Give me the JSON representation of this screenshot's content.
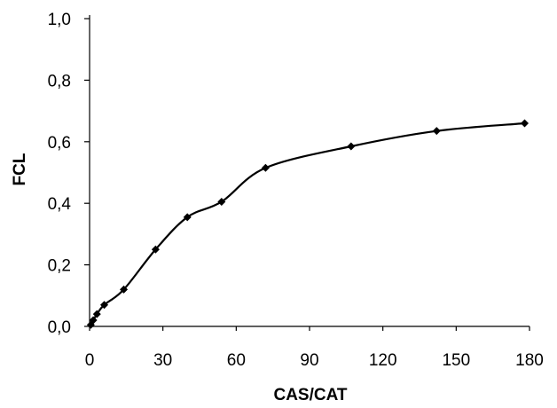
{
  "chart_data": {
    "type": "line",
    "title": "",
    "xlabel": "CAS/CAT",
    "ylabel": "FCL",
    "xlim": [
      0,
      180
    ],
    "ylim": [
      0,
      1.0
    ],
    "x_ticks": [
      "0",
      "30",
      "60",
      "90",
      "120",
      "150",
      "180"
    ],
    "y_ticks": [
      "0,0",
      "0,2",
      "0,4",
      "0,6",
      "0,8",
      "1,0"
    ],
    "grid": false,
    "legend": "none",
    "series": [
      {
        "marker": "diamond",
        "color": "#000000",
        "smooth": true,
        "points": [
          {
            "x": 0.5,
            "y": 0.005
          },
          {
            "x": 1.5,
            "y": 0.02
          },
          {
            "x": 3,
            "y": 0.04
          },
          {
            "x": 6,
            "y": 0.07
          },
          {
            "x": 14,
            "y": 0.12
          },
          {
            "x": 27,
            "y": 0.25
          },
          {
            "x": 40,
            "y": 0.355
          },
          {
            "x": 54,
            "y": 0.405
          },
          {
            "x": 72,
            "y": 0.515
          },
          {
            "x": 107,
            "y": 0.585
          },
          {
            "x": 142,
            "y": 0.635
          },
          {
            "x": 178,
            "y": 0.66
          }
        ]
      }
    ]
  }
}
